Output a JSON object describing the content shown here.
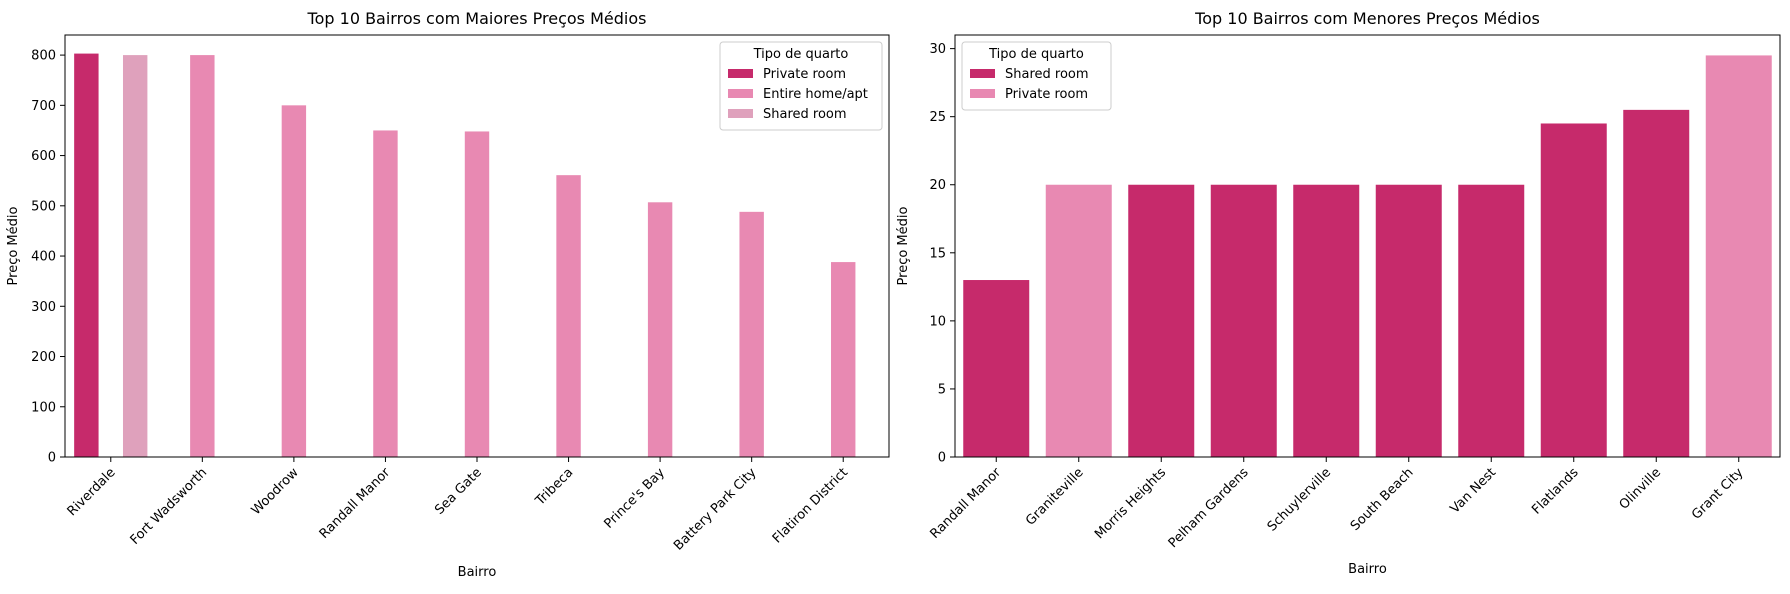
{
  "chart_data": [
    {
      "type": "bar",
      "title": "Top 10 Bairros com Maiores Preços Médios",
      "xlabel": "Bairro",
      "ylabel": "Preço Médio",
      "ylim": [
        0,
        840
      ],
      "yticks": [
        0,
        100,
        200,
        300,
        400,
        500,
        600,
        700,
        800
      ],
      "categories": [
        "Riverdale",
        "Fort Wadsworth",
        "Woodrow",
        "Randall Manor",
        "Sea Gate",
        "Tribeca",
        "Prince's Bay",
        "Battery Park City",
        "Flatiron District"
      ],
      "legend_title": "Tipo de quarto",
      "legend_position": "top-right",
      "grid": false,
      "series": [
        {
          "name": "Private room",
          "color": "#c62a6b",
          "values": [
            803,
            null,
            null,
            null,
            null,
            null,
            null,
            null,
            null
          ]
        },
        {
          "name": "Entire home/apt",
          "color": "#e889b2",
          "values": [
            null,
            800,
            700,
            650,
            648,
            561,
            507,
            488,
            388
          ]
        },
        {
          "name": "Shared room",
          "color": "#dfa1bc",
          "values": [
            800,
            null,
            null,
            null,
            null,
            null,
            null,
            null,
            null
          ]
        }
      ]
    },
    {
      "type": "bar",
      "title": "Top 10 Bairros com Menores Preços Médios",
      "xlabel": "Bairro",
      "ylabel": "Preço Médio",
      "ylim": [
        0,
        31
      ],
      "yticks": [
        0,
        5,
        10,
        15,
        20,
        25,
        30
      ],
      "categories": [
        "Randall Manor",
        "Graniteville",
        "Morris Heights",
        "Pelham Gardens",
        "Schuylerville",
        "South Beach",
        "Van Nest",
        "Flatlands",
        "Olinville",
        "Grant City"
      ],
      "legend_title": "Tipo de quarto",
      "legend_position": "top-left",
      "grid": false,
      "series": [
        {
          "name": "Shared room",
          "color": "#c62a6b",
          "values": [
            13,
            null,
            20,
            20,
            20,
            20,
            20,
            24.5,
            25.5,
            null
          ]
        },
        {
          "name": "Private room",
          "color": "#e889b2",
          "values": [
            null,
            20,
            null,
            null,
            null,
            null,
            null,
            null,
            null,
            29.5
          ]
        }
      ]
    }
  ]
}
